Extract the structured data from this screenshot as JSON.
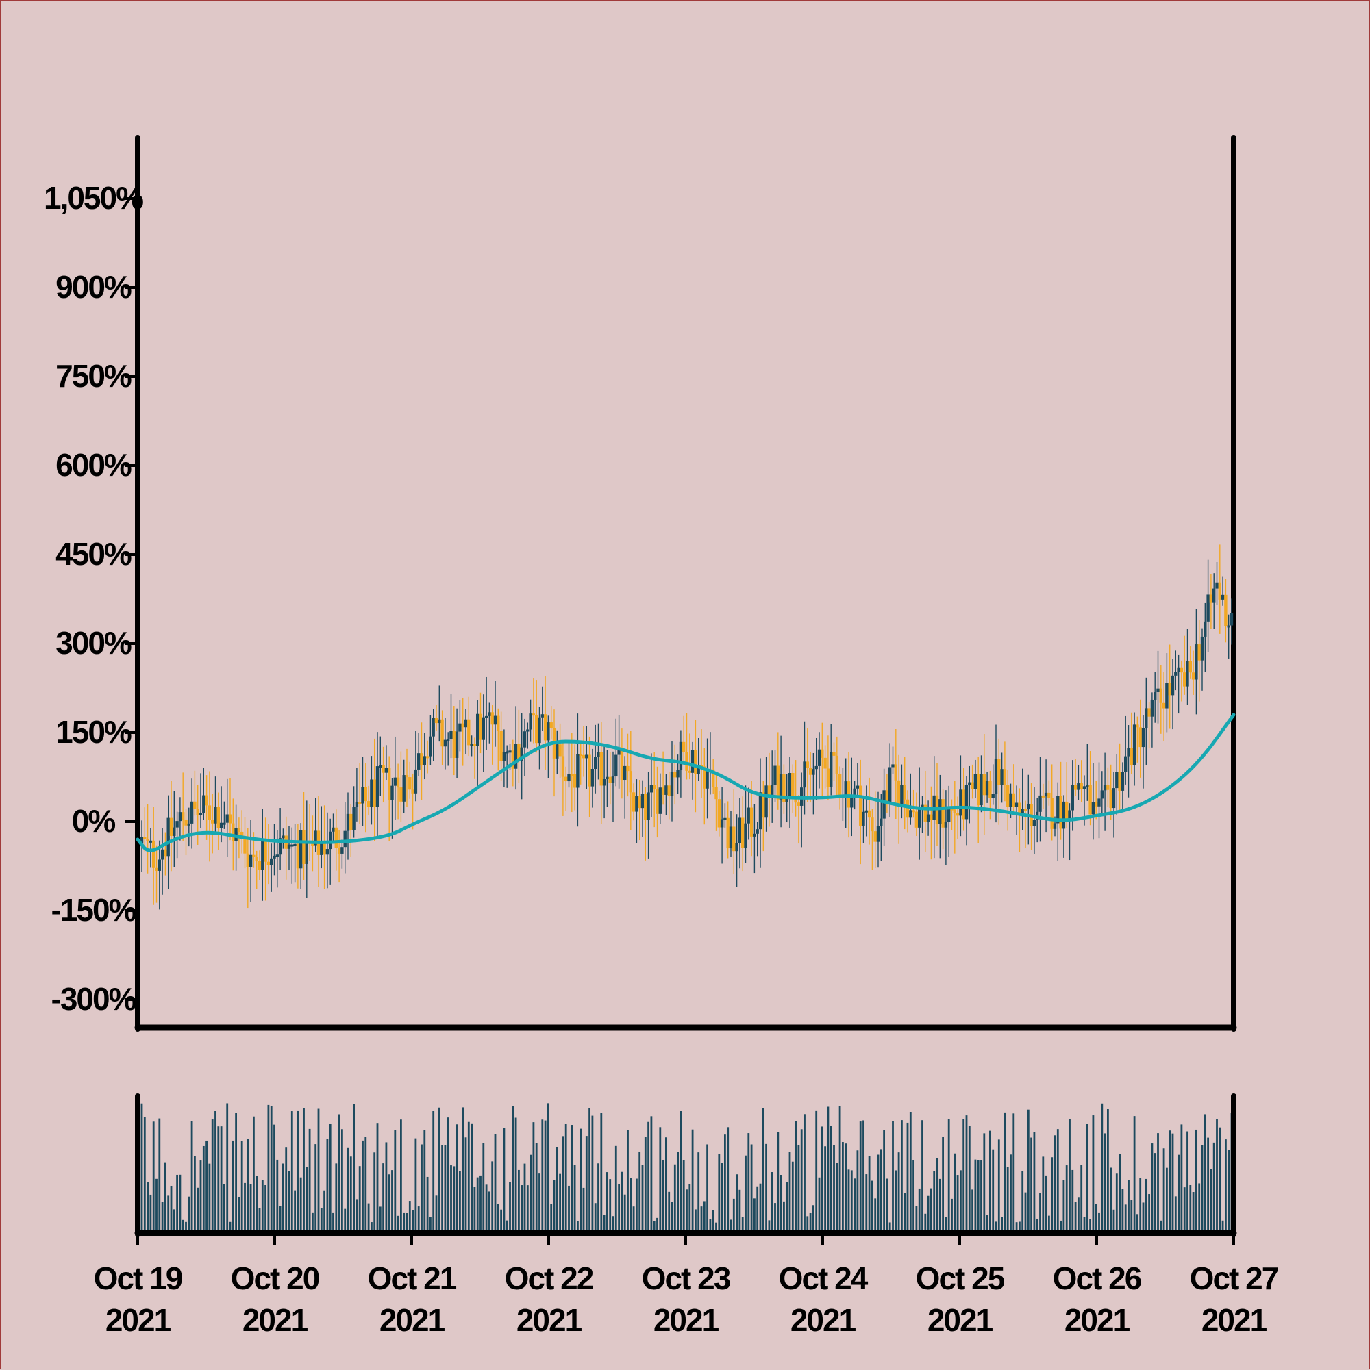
{
  "chart_data": {
    "type": "candlestick",
    "title": "",
    "xlabel": "",
    "ylabel": "",
    "ylim": [
      -350,
      1150
    ],
    "y_ticks": [
      "1,050%",
      "900%",
      "750%",
      "600%",
      "450%",
      "300%",
      "150%",
      "0%",
      "-150%",
      "-300%"
    ],
    "y_tick_values": [
      1050,
      900,
      750,
      600,
      450,
      300,
      150,
      0,
      -150,
      -300
    ],
    "x_ticks": [
      {
        "date": "Oct 19",
        "year": "2021"
      },
      {
        "date": "Oct 20",
        "year": "2021"
      },
      {
        "date": "Oct 21",
        "year": "2021"
      },
      {
        "date": "Oct 22",
        "year": "2021"
      },
      {
        "date": "Oct 23",
        "year": "2021"
      },
      {
        "date": "Oct 24",
        "year": "2021"
      },
      {
        "date": "Oct 25",
        "year": "2021"
      },
      {
        "date": "Oct 26",
        "year": "2021"
      },
      {
        "date": "Oct 27",
        "year": "2021"
      }
    ],
    "x_range": [
      "2021-10-19",
      "2021-10-27"
    ],
    "grid": false,
    "legend": "none",
    "price_path_percent": [
      [
        "2021-10-19 00:00",
        -30
      ],
      [
        "2021-10-19 03:00",
        -60
      ],
      [
        "2021-10-19 08:00",
        10
      ],
      [
        "2021-10-19 14:00",
        20
      ],
      [
        "2021-10-19 20:00",
        -60
      ],
      [
        "2021-10-20 00:00",
        -40
      ],
      [
        "2021-10-20 06:00",
        -50
      ],
      [
        "2021-10-20 12:00",
        -20
      ],
      [
        "2021-10-20 18:00",
        60
      ],
      [
        "2021-10-21 00:00",
        70
      ],
      [
        "2021-10-21 03:00",
        150
      ],
      [
        "2021-10-21 08:00",
        130
      ],
      [
        "2021-10-21 14:00",
        170
      ],
      [
        "2021-10-21 17:00",
        110
      ],
      [
        "2021-10-21 21:00",
        160
      ],
      [
        "2021-10-22 00:00",
        150
      ],
      [
        "2021-10-22 03:00",
        80
      ],
      [
        "2021-10-22 08:00",
        80
      ],
      [
        "2021-10-22 12:00",
        100
      ],
      [
        "2021-10-22 16:00",
        10
      ],
      [
        "2021-10-22 20:00",
        60
      ],
      [
        "2021-10-23 00:00",
        120
      ],
      [
        "2021-10-23 04:00",
        80
      ],
      [
        "2021-10-23 08:00",
        -40
      ],
      [
        "2021-10-23 12:00",
        0
      ],
      [
        "2021-10-23 16:00",
        70
      ],
      [
        "2021-10-23 20:00",
        60
      ],
      [
        "2021-10-24 00:00",
        100
      ],
      [
        "2021-10-24 06:00",
        40
      ],
      [
        "2021-10-24 09:00",
        -20
      ],
      [
        "2021-10-24 12:00",
        70
      ],
      [
        "2021-10-24 16:00",
        20
      ],
      [
        "2021-10-24 20:00",
        10
      ],
      [
        "2021-10-25 00:00",
        20
      ],
      [
        "2021-10-25 04:00",
        60
      ],
      [
        "2021-10-25 07:00",
        80
      ],
      [
        "2021-10-25 10:00",
        10
      ],
      [
        "2021-10-25 15:00",
        20
      ],
      [
        "2021-10-25 18:00",
        20
      ],
      [
        "2021-10-25 21:00",
        70
      ],
      [
        "2021-10-26 00:00",
        0
      ],
      [
        "2021-10-26 04:00",
        80
      ],
      [
        "2021-10-26 08:00",
        160
      ],
      [
        "2021-10-26 12:00",
        220
      ],
      [
        "2021-10-26 16:00",
        240
      ],
      [
        "2021-10-26 19:00",
        330
      ],
      [
        "2021-10-26 21:00",
        400
      ],
      [
        "2021-10-26 23:00",
        340
      ],
      [
        "2021-10-27 00:00",
        360
      ]
    ],
    "moving_average_percent": [
      [
        "2021-10-19 00:00",
        -30
      ],
      [
        "2021-10-19 02:00",
        -55
      ],
      [
        "2021-10-19 06:00",
        -30
      ],
      [
        "2021-10-19 12:00",
        -15
      ],
      [
        "2021-10-19 20:00",
        -30
      ],
      [
        "2021-10-20 04:00",
        -35
      ],
      [
        "2021-10-20 12:00",
        -35
      ],
      [
        "2021-10-20 20:00",
        -25
      ],
      [
        "2021-10-21 00:00",
        -5
      ],
      [
        "2021-10-21 06:00",
        20
      ],
      [
        "2021-10-21 12:00",
        60
      ],
      [
        "2021-10-21 18:00",
        100
      ],
      [
        "2021-10-22 00:00",
        135
      ],
      [
        "2021-10-22 06:00",
        135
      ],
      [
        "2021-10-22 12:00",
        125
      ],
      [
        "2021-10-22 18:00",
        105
      ],
      [
        "2021-10-23 00:00",
        100
      ],
      [
        "2021-10-23 06:00",
        80
      ],
      [
        "2021-10-23 12:00",
        45
      ],
      [
        "2021-10-23 18:00",
        40
      ],
      [
        "2021-10-24 00:00",
        40
      ],
      [
        "2021-10-24 06:00",
        45
      ],
      [
        "2021-10-24 12:00",
        30
      ],
      [
        "2021-10-24 18:00",
        20
      ],
      [
        "2021-10-25 00:00",
        25
      ],
      [
        "2021-10-25 06:00",
        20
      ],
      [
        "2021-10-25 12:00",
        10
      ],
      [
        "2021-10-25 18:00",
        0
      ],
      [
        "2021-10-26 00:00",
        10
      ],
      [
        "2021-10-26 06:00",
        20
      ],
      [
        "2021-10-26 12:00",
        50
      ],
      [
        "2021-10-26 18:00",
        100
      ],
      [
        "2021-10-27 00:00",
        180
      ]
    ],
    "volume": "one bar per candle, relative heights 0-1, values not labeled"
  },
  "colors": {
    "background": "#dfc8c8",
    "border": "#a03a3a",
    "axis": "#000000",
    "up_candle": "#1d4a5e",
    "down_candle": "#f2a824",
    "moving_average": "#17a8b2",
    "volume_bar": "#1d4a5e"
  }
}
